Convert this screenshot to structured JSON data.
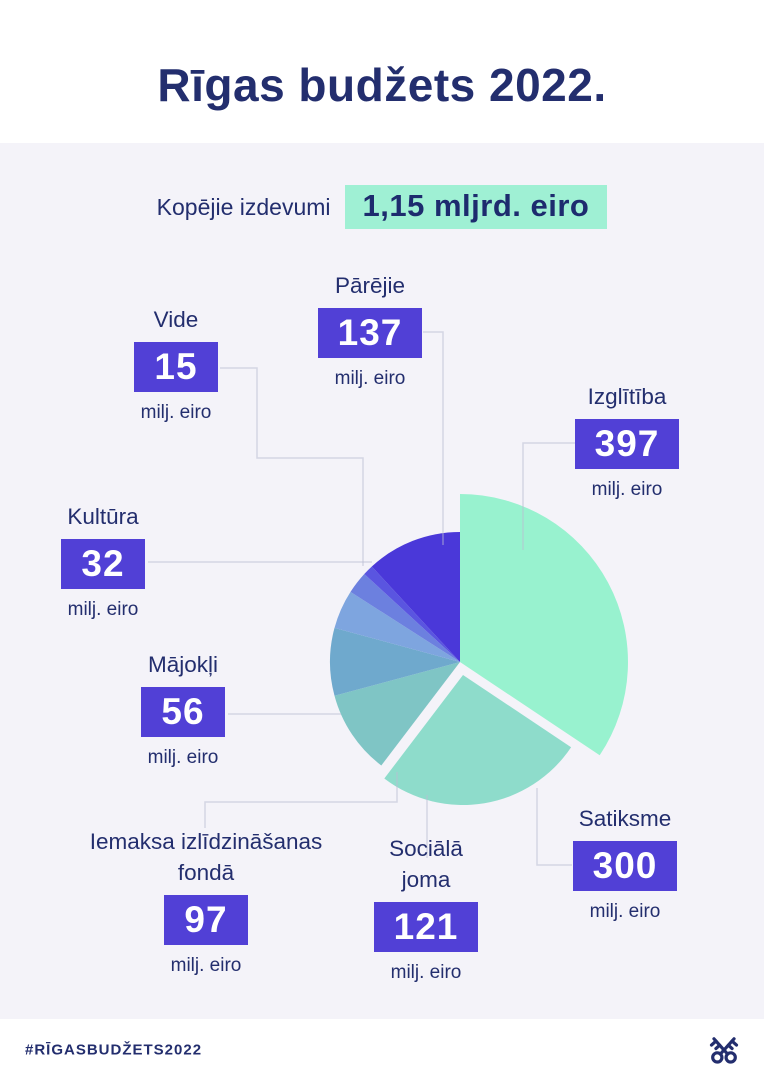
{
  "title": "Rīgas budžets 2022.",
  "subtitle": {
    "label": "Kopējie izdevumi",
    "value": "1,15 mljrd. eiro"
  },
  "unit": "milj. eiro",
  "footer": {
    "hashtag": "#RĪGASBUDŽETS2022",
    "logo_icon": "crossed-keys-icon"
  },
  "colors": {
    "page_background": "#ffffff",
    "panel_background": "#f4f3f9",
    "text_navy": "#232e6e",
    "value_box_purple": "#5140d6",
    "highlight_mint": "#9ff0d4",
    "connector_line": "#b9bdd4"
  },
  "chart_data": {
    "type": "pie",
    "title": "Rīgas budžets 2022.",
    "total_label": "Kopējie izdevumi",
    "total_value": "1,15 mljrd. eiro",
    "unit": "milj. eiro",
    "start_angle_deg": 0,
    "direction": "clockwise",
    "legend_position": "callouts-around-pie",
    "slices": [
      {
        "label": "Izglītība",
        "value": 397,
        "color": "#98f2cf",
        "exploded": true
      },
      {
        "label": "Satiksme",
        "value": 300,
        "color": "#8edccb",
        "exploded": true
      },
      {
        "label": "Sociālā joma",
        "value": 121,
        "color": "#7fc5c5",
        "exploded": false
      },
      {
        "label": "Iemaksa izlīdzināšanas fondā",
        "value": 97,
        "color": "#6fa9cd",
        "exploded": false
      },
      {
        "label": "Mājokļi",
        "value": 56,
        "color": "#7ea5df",
        "exploded": false
      },
      {
        "label": "Kultūra",
        "value": 32,
        "color": "#6c80df",
        "exploded": false
      },
      {
        "label": "Vide",
        "value": 15,
        "color": "#5a55e0",
        "exploded": false
      },
      {
        "label": "Pārējie",
        "value": 137,
        "color": "#4a38d9",
        "exploded": false
      }
    ]
  }
}
